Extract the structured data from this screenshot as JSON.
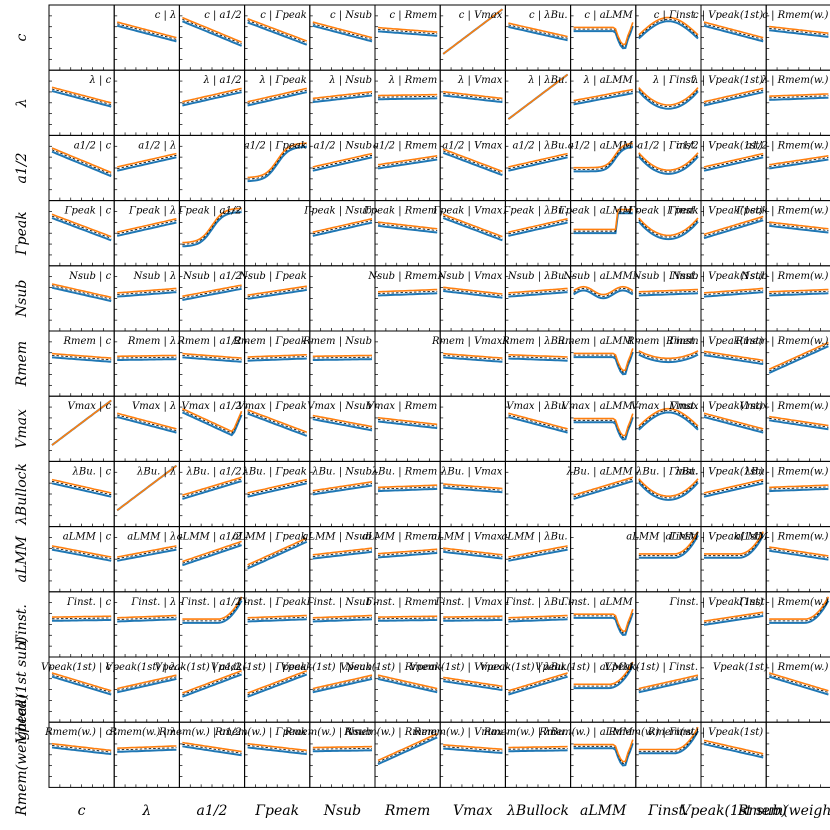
{
  "chart_data": {
    "type": "line",
    "layout": "matrix",
    "variables": [
      "c",
      "λ",
      "a1/2",
      "Γpeak",
      "Nsub",
      "Rmem",
      "Vmax",
      "λBu.",
      "aLMM",
      "Γinst.",
      "Vpeak(1st)",
      "Rmem(w.)"
    ],
    "row_labels": [
      "c",
      "λ",
      "a1/2",
      "Γpeak",
      "Nsub",
      "Rmem",
      "Vmax",
      "λBullock",
      "aLMM",
      "Γinst.",
      "Vpeak(1st sub)",
      "Rmem(weighted)"
    ],
    "column_labels": [
      "c",
      "λ",
      "a1/2",
      "Γpeak",
      "Nsub",
      "Rmem",
      "Vmax",
      "λBullock",
      "aLMM",
      "Γinst.",
      "Vpeak(1st sub)",
      "Rmem(weighted)"
    ],
    "separator": " | ",
    "series_colors": {
      "blue": "#1f77b4",
      "orange": "#ff7f0e",
      "mean": "#000000"
    },
    "diagonal": "empty",
    "relations": [
      [
        0,
        -0.35,
        -0.55,
        -0.5,
        -0.35,
        -0.1,
        1,
        -0.3,
        "dip_r",
        "arch",
        -0.35,
        -0.15
      ],
      [
        -0.35,
        0,
        0.3,
        0.3,
        0.15,
        0.02,
        -0.15,
        1,
        0.25,
        "u",
        0.3,
        0.05
      ],
      [
        -0.55,
        0.3,
        0,
        "sig",
        0.3,
        0.2,
        -0.5,
        0.3,
        "sig_late",
        "u",
        0.3,
        0.2
      ],
      [
        -0.5,
        0.3,
        "sig",
        0,
        0.3,
        -0.15,
        -0.5,
        0.3,
        "step",
        "u",
        0.4,
        -0.15
      ],
      [
        -0.3,
        0.1,
        0.25,
        0.2,
        0,
        0.05,
        -0.15,
        0.1,
        "wave",
        0.05,
        0.1,
        0.05
      ],
      [
        -0.1,
        0.02,
        -0.1,
        0.05,
        0.02,
        0,
        -0.1,
        -0.05,
        "dip_r",
        "u_soft",
        -0.2,
        0.6
      ],
      [
        1,
        -0.35,
        "dip_end",
        -0.5,
        -0.25,
        -0.15,
        0,
        -0.35,
        "dip_r",
        "arch",
        -0.35,
        -0.2
      ],
      [
        -0.3,
        1,
        0.4,
        0.3,
        0.2,
        0.05,
        -0.1,
        0,
        0.4,
        "u",
        0.3,
        0.05
      ],
      [
        -0.25,
        0.25,
        0.45,
        0.6,
        0.15,
        0.1,
        -0.15,
        0.25,
        0,
        "rise_end",
        "rise_end",
        -0.2
      ],
      [
        0.02,
        0.05,
        "rise_end",
        0.05,
        0.05,
        0.02,
        0.02,
        0.05,
        "dip_r",
        0,
        0.2,
        "rise_end"
      ],
      [
        -0.4,
        0.3,
        0.5,
        0.5,
        0.3,
        -0.3,
        -0.2,
        0.4,
        "rise_end",
        0.3,
        0,
        -0.4
      ],
      [
        -0.15,
        0.05,
        -0.2,
        -0.15,
        0.02,
        0.6,
        -0.1,
        0.02,
        "dip_r",
        "rise_end",
        -0.3,
        0
      ]
    ]
  }
}
